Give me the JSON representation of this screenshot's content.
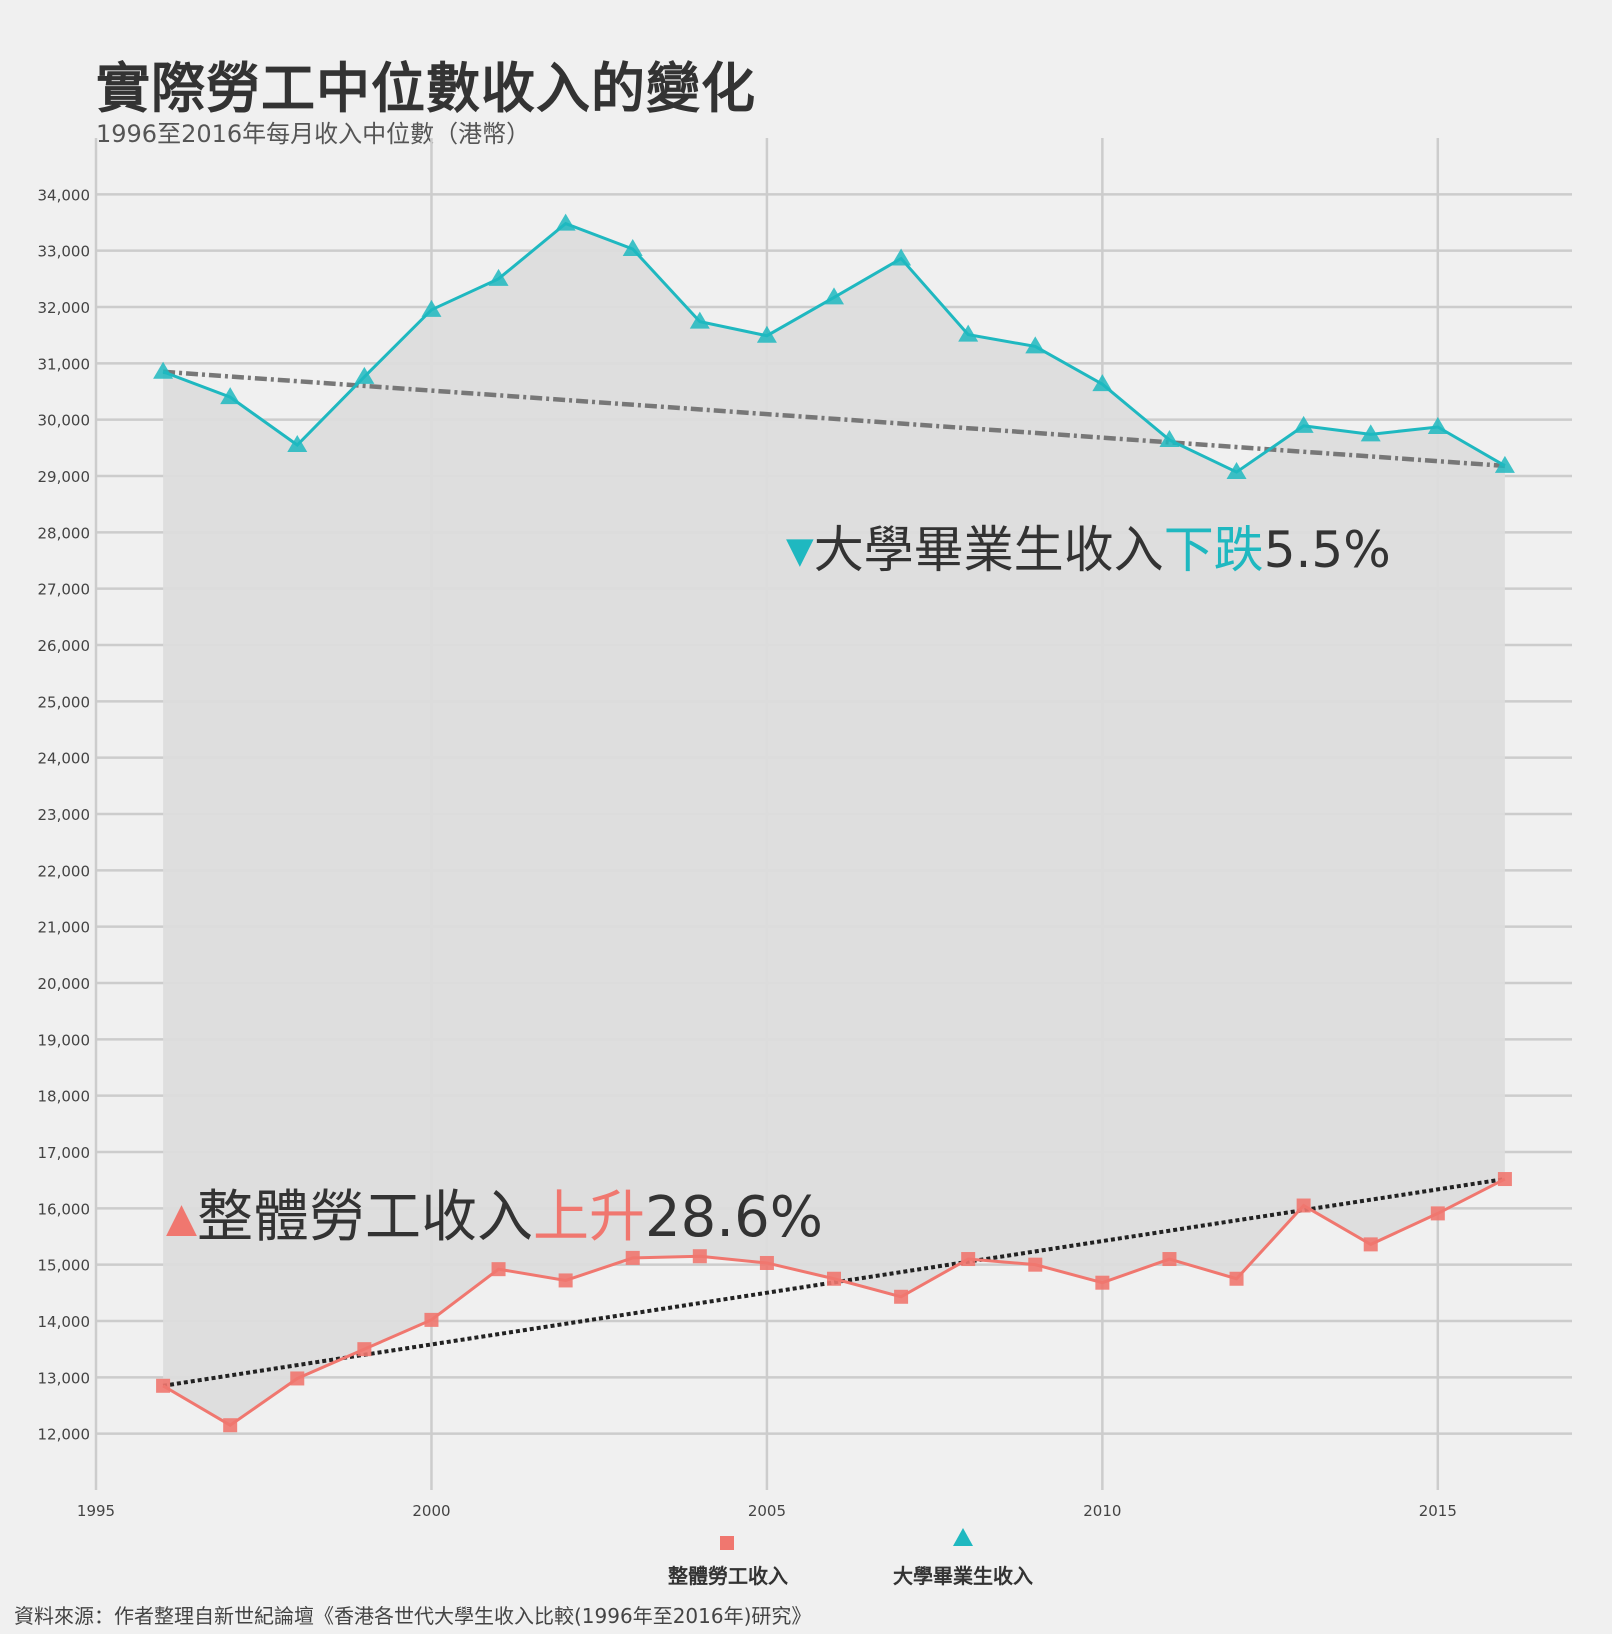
{
  "title": "實際勞工中位數收入的變化",
  "subtitle": "1996至2016年每月收入中位數（港幣）",
  "source": "資料來源：作者整理自新世紀論壇《香港各世代大學生收入比較(1996年至2016年)研究》",
  "annotations": {
    "graduate": {
      "text": "大學畢業生收入",
      "highlight": "下跌",
      "value": "5.5%",
      "marker": "▼"
    },
    "overall": {
      "text": "整體勞工收入",
      "highlight": "上升",
      "value": "28.6%",
      "marker": "▲"
    }
  },
  "legend": {
    "overall": "整體勞工收入",
    "graduate": "大學畢業生收入"
  },
  "colors": {
    "overall": "#f0776f",
    "graduate": "#1fb8c0",
    "fill": "#dcdcdc",
    "grid": "#cccccc",
    "trend_graduate": "#777777",
    "trend_overall": "#222222",
    "text": "#333333"
  },
  "chart_data": {
    "type": "line",
    "x": [
      1996,
      1997,
      1998,
      1999,
      2000,
      2001,
      2002,
      2003,
      2004,
      2005,
      2006,
      2007,
      2008,
      2009,
      2010,
      2011,
      2012,
      2013,
      2014,
      2015,
      2016
    ],
    "series": [
      {
        "name": "整體勞工收入",
        "marker": "square",
        "values": [
          12850,
          12150,
          12980,
          13500,
          14020,
          14920,
          14720,
          15120,
          15150,
          15030,
          14750,
          14430,
          15100,
          15000,
          14680,
          15100,
          14750,
          16050,
          15360,
          15910,
          16520
        ],
        "trend": [
          12850,
          16520
        ]
      },
      {
        "name": "大學畢業生收入",
        "marker": "triangle",
        "values": [
          30850,
          30400,
          29550,
          30760,
          31950,
          32500,
          33480,
          33030,
          31740,
          31490,
          32170,
          32860,
          31510,
          31300,
          30630,
          29640,
          29070,
          29890,
          29740,
          29870,
          29180
        ],
        "trend": [
          30850,
          29180
        ]
      }
    ],
    "xticks": [
      1995,
      2000,
      2005,
      2010,
      2015
    ],
    "xlim": [
      1995,
      2017
    ],
    "yticks": [
      12000,
      13000,
      14000,
      15000,
      16000,
      17000,
      18000,
      19000,
      20000,
      21000,
      22000,
      23000,
      24000,
      25000,
      26000,
      27000,
      28000,
      29000,
      30000,
      31000,
      32000,
      33000,
      34000
    ],
    "ylim": [
      11000,
      35000
    ],
    "grid": true,
    "legend_position": "bottom"
  }
}
